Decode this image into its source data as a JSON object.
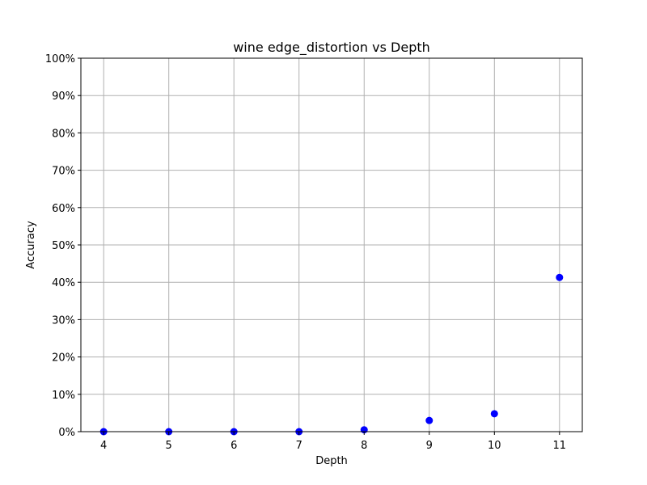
{
  "chart_data": {
    "type": "scatter",
    "title": "wine edge_distortion vs Depth",
    "xlabel": "Depth",
    "ylabel": "Accuracy",
    "x": [
      4,
      5,
      6,
      7,
      8,
      9,
      10,
      11
    ],
    "y": [
      0.0,
      0.0,
      0.0,
      0.0,
      0.5,
      3.0,
      4.8,
      41.3
    ],
    "xlim": [
      3.65,
      11.35
    ],
    "ylim": [
      0,
      100
    ],
    "xticks": [
      4,
      5,
      6,
      7,
      8,
      9,
      10,
      11
    ],
    "yticks": [
      0,
      10,
      20,
      30,
      40,
      50,
      60,
      70,
      80,
      90,
      100
    ],
    "ytick_labels": [
      "0%",
      "10%",
      "20%",
      "30%",
      "40%",
      "50%",
      "60%",
      "70%",
      "80%",
      "90%",
      "100%"
    ],
    "grid": true,
    "marker_color": "#0000ff",
    "grid_color": "#b0b0b0"
  }
}
